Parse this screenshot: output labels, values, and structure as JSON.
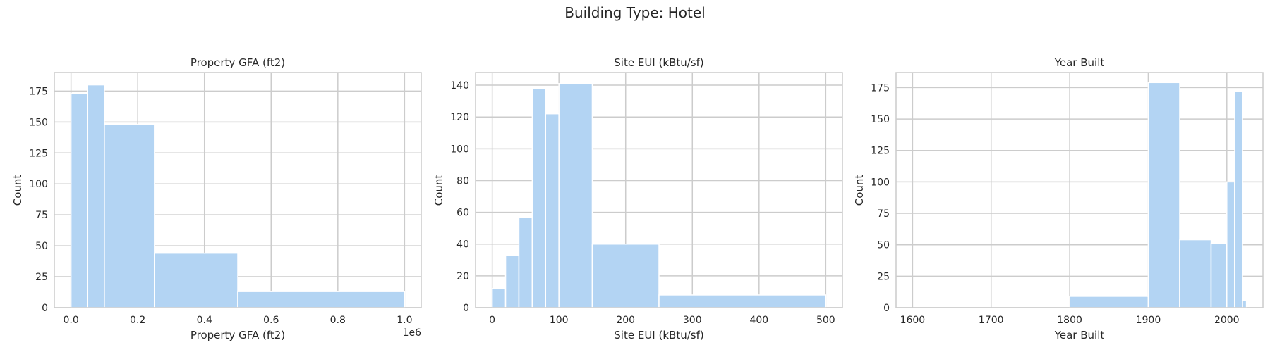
{
  "figure": {
    "title": "Building Type: Hotel"
  },
  "style": {
    "bar_color": "#b3d4f3",
    "bar_edge": "#ffffff",
    "grid_color": "#cccccc",
    "frame_color": "#cccccc"
  },
  "chart_data": [
    {
      "type": "bar",
      "title": "Property GFA (ft2)",
      "xlabel": "Property GFA (ft2)",
      "ylabel": "Count",
      "offset_text": "1e6",
      "xscale_factor": 1000000,
      "xlim": [
        -50000,
        1050000
      ],
      "ylim": [
        0,
        190
      ],
      "xticks": [
        0,
        200000,
        400000,
        600000,
        800000,
        1000000
      ],
      "xtick_labels": [
        "0.0",
        "0.2",
        "0.4",
        "0.6",
        "0.8",
        "1.0"
      ],
      "yticks": [
        0,
        25,
        50,
        75,
        100,
        125,
        150,
        175
      ],
      "grid": true,
      "bins": [
        {
          "start": 0,
          "end": 50000,
          "count": 173
        },
        {
          "start": 50000,
          "end": 100000,
          "count": 180
        },
        {
          "start": 100000,
          "end": 250000,
          "count": 148
        },
        {
          "start": 250000,
          "end": 500000,
          "count": 44
        },
        {
          "start": 500000,
          "end": 1000000,
          "count": 13
        }
      ]
    },
    {
      "type": "bar",
      "title": "Site EUI (kBtu/sf)",
      "xlabel": "Site EUI (kBtu/sf)",
      "ylabel": "Count",
      "xlim": [
        -25,
        525
      ],
      "ylim": [
        0,
        148
      ],
      "xticks": [
        0,
        100,
        200,
        300,
        400,
        500
      ],
      "xtick_labels": [
        "0",
        "100",
        "200",
        "300",
        "400",
        "500"
      ],
      "yticks": [
        0,
        20,
        40,
        60,
        80,
        100,
        120,
        140
      ],
      "grid": true,
      "bins": [
        {
          "start": 0,
          "end": 20,
          "count": 12
        },
        {
          "start": 20,
          "end": 40,
          "count": 33
        },
        {
          "start": 40,
          "end": 60,
          "count": 57
        },
        {
          "start": 60,
          "end": 80,
          "count": 138
        },
        {
          "start": 80,
          "end": 100,
          "count": 122
        },
        {
          "start": 100,
          "end": 150,
          "count": 141
        },
        {
          "start": 150,
          "end": 250,
          "count": 40
        },
        {
          "start": 250,
          "end": 500,
          "count": 8
        }
      ]
    },
    {
      "type": "bar",
      "title": "Year Built",
      "xlabel": "Year Built",
      "ylabel": "Count",
      "xlim": [
        1579,
        2046
      ],
      "ylim": [
        0,
        187
      ],
      "xticks": [
        1600,
        1700,
        1800,
        1900,
        2000
      ],
      "xtick_labels": [
        "1600",
        "1700",
        "1800",
        "1900",
        "2000"
      ],
      "yticks": [
        0,
        25,
        50,
        75,
        100,
        125,
        150,
        175
      ],
      "grid": true,
      "bins": [
        {
          "start": 1600,
          "end": 1800,
          "count": 0
        },
        {
          "start": 1800,
          "end": 1900,
          "count": 9
        },
        {
          "start": 1900,
          "end": 1940,
          "count": 179
        },
        {
          "start": 1940,
          "end": 1980,
          "count": 54
        },
        {
          "start": 1980,
          "end": 2000,
          "count": 51
        },
        {
          "start": 2000,
          "end": 2010,
          "count": 100
        },
        {
          "start": 2010,
          "end": 2020,
          "count": 172
        },
        {
          "start": 2020,
          "end": 2025,
          "count": 6
        }
      ]
    }
  ]
}
